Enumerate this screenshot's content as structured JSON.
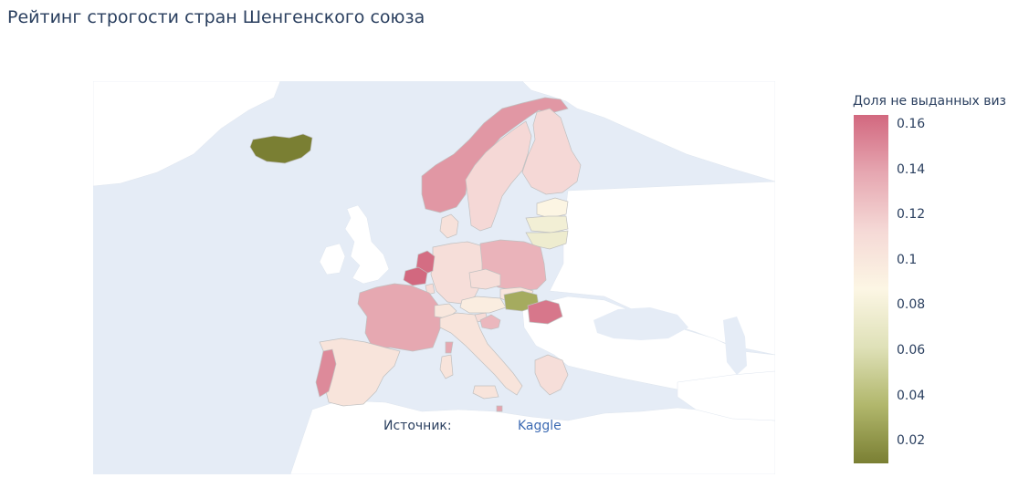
{
  "title": "Рейтинг строгости стран Шенгенского союза",
  "source": {
    "label": "Источник:",
    "link_text": "Kaggle"
  },
  "colorbar": {
    "title": "Доля не выданных виз",
    "min": 0.01,
    "max": 0.164,
    "ticks": [
      "0.16",
      "0.14",
      "0.12",
      "0.1",
      "0.08",
      "0.06",
      "0.04",
      "0.02"
    ],
    "tick_values": [
      0.16,
      0.14,
      0.12,
      0.1,
      0.08,
      0.06,
      0.04,
      0.02
    ],
    "colors": [
      "#d2687f",
      "#e6a7b1",
      "#f5d9d6",
      "#fcf6e4",
      "#dfe1b8",
      "#b1b76c",
      "#7a7f33"
    ]
  },
  "colors": {
    "ocean": "#e5ecf6",
    "land": "#ffffff",
    "border": "#c9c9c9"
  },
  "chart_data": {
    "type": "choropleth",
    "value_name": "Доля не выданных виз",
    "regions": [
      {
        "name": "Iceland",
        "value": 0.01
      },
      {
        "name": "Norway",
        "value": 0.145
      },
      {
        "name": "Sweden",
        "value": 0.113
      },
      {
        "name": "Finland",
        "value": 0.113
      },
      {
        "name": "Estonia",
        "value": 0.088
      },
      {
        "name": "Latvia",
        "value": 0.078
      },
      {
        "name": "Lithuania",
        "value": 0.075
      },
      {
        "name": "Denmark",
        "value": 0.106
      },
      {
        "name": "Poland",
        "value": 0.132
      },
      {
        "name": "Germany",
        "value": 0.108
      },
      {
        "name": "Netherlands",
        "value": 0.162
      },
      {
        "name": "Belgium",
        "value": 0.164
      },
      {
        "name": "Luxembourg",
        "value": 0.11
      },
      {
        "name": "France",
        "value": 0.138
      },
      {
        "name": "Czechia",
        "value": 0.108
      },
      {
        "name": "Slovakia",
        "value": 0.102
      },
      {
        "name": "Austria",
        "value": 0.095
      },
      {
        "name": "Switzerland",
        "value": 0.1
      },
      {
        "name": "Hungary",
        "value": 0.03
      },
      {
        "name": "Slovenia",
        "value": 0.11
      },
      {
        "name": "Croatia",
        "value": 0.13
      },
      {
        "name": "Italy",
        "value": 0.103
      },
      {
        "name": "Malta",
        "value": 0.14
      },
      {
        "name": "Greece",
        "value": 0.108
      },
      {
        "name": "Spain",
        "value": 0.103
      },
      {
        "name": "Portugal",
        "value": 0.15
      },
      {
        "name": "Romania",
        "value": 0.158
      }
    ]
  }
}
